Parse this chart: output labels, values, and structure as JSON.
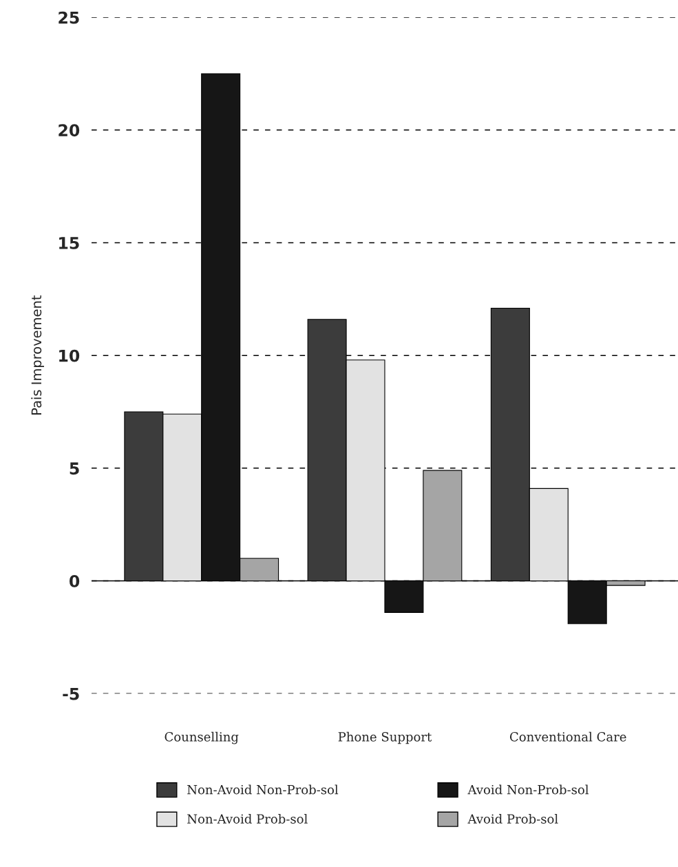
{
  "chart_data": {
    "type": "bar",
    "ylabel": "Pais Improvement",
    "categories": [
      "Counselling",
      "Phone Support",
      "Conventional Care"
    ],
    "series": [
      {
        "name": "Non-Avoid Non-Prob-sol",
        "color": "#3c3c3c",
        "values": [
          7.5,
          11.6,
          12.1
        ]
      },
      {
        "name": "Non-Avoid Prob-sol",
        "color": "#e2e2e2",
        "values": [
          7.4,
          9.8,
          4.1
        ]
      },
      {
        "name": "Avoid Non-Prob-sol",
        "color": "#161616",
        "values": [
          22.5,
          -1.4,
          -1.9
        ]
      },
      {
        "name": "Avoid Prob-sol",
        "color": "#a5a5a5",
        "values": [
          1.0,
          4.9,
          -0.2
        ]
      }
    ],
    "ylim": [
      -5,
      25
    ],
    "yticks": [
      -5,
      0,
      5,
      10,
      15,
      20,
      25
    ],
    "grid": "y",
    "legend": "bottom",
    "ref_lines": [
      {
        "axis": "y",
        "value": 0,
        "line_style": "solid",
        "color": "#000000"
      }
    ]
  }
}
